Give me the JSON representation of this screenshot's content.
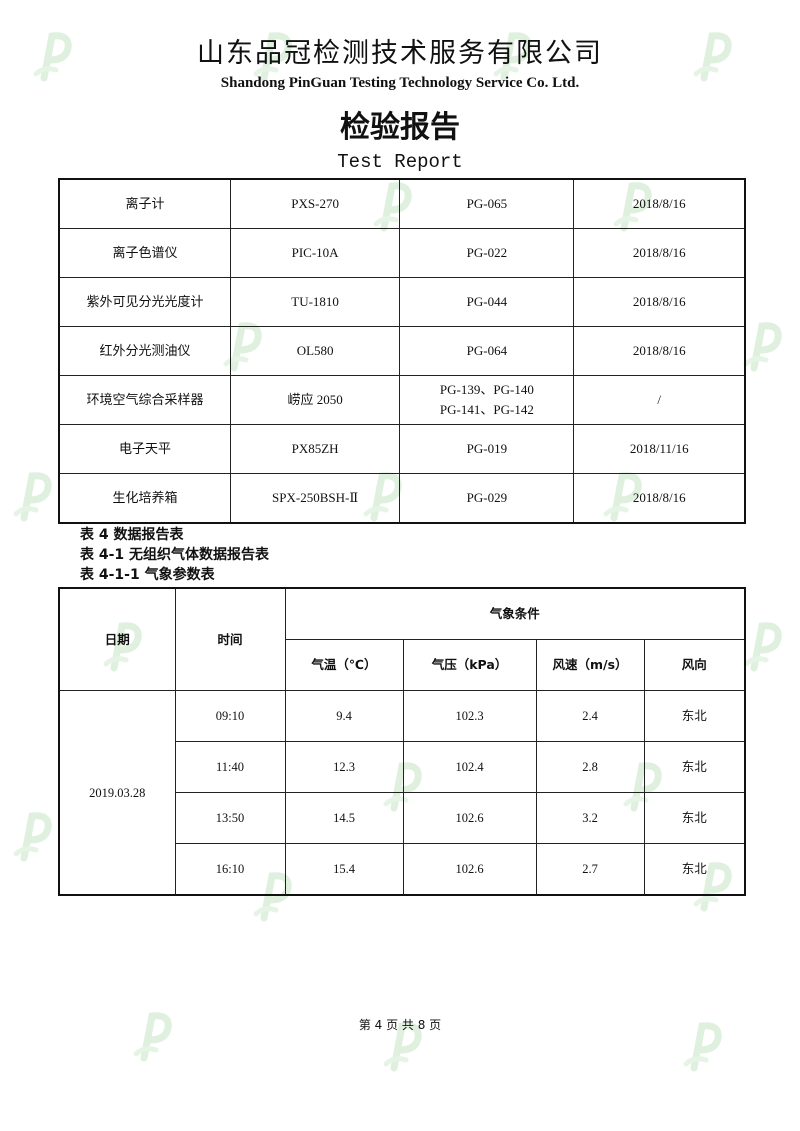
{
  "header": {
    "company_cn": "山东品冠检测技术服务有限公司",
    "company_en": "Shandong PinGuan Testing Technology Service Co. Ltd.",
    "title_cn": "检验报告",
    "title_en": "Test Report"
  },
  "watermark": "P",
  "equipment": [
    [
      "离子计",
      "PXS-270",
      "PG-065",
      "2018/8/16"
    ],
    [
      "离子色谱仪",
      "PIC-10A",
      "PG-022",
      "2018/8/16"
    ],
    [
      "紫外可见分光光度计",
      "TU-1810",
      "PG-044",
      "2018/8/16"
    ],
    [
      "红外分光测油仪",
      "OL580",
      "PG-064",
      "2018/8/16"
    ],
    [
      "环境空气综合采样器",
      "崂应 2050",
      "PG-139、PG-140",
      "/"
    ],
    [
      "电子天平",
      "PX85ZH",
      "PG-019",
      "2018/11/16"
    ],
    [
      "生化培养箱",
      "SPX-250BSH-Ⅱ",
      "PG-029",
      "2018/8/16"
    ]
  ],
  "equipment_extra": "PG-141、PG-142",
  "captions": [
    "表 4 数据报告表",
    "表 4-1 无组织气体数据报告表",
    "表 4-1-1 气象参数表"
  ],
  "weather": {
    "headers": {
      "date": "日期",
      "time": "时间",
      "group": "气象条件",
      "temp": "气温（℃）",
      "pressure": "气压（kPa）",
      "wind_speed": "风速（m/s）",
      "wind_dir": "风向"
    },
    "date": "2019.03.28",
    "rows": [
      [
        "09:10",
        "9.4",
        "102.3",
        "2.4",
        "东北"
      ],
      [
        "11:40",
        "12.3",
        "102.4",
        "2.8",
        "东北"
      ],
      [
        "13:50",
        "14.5",
        "102.6",
        "3.2",
        "东北"
      ],
      [
        "16:10",
        "15.4",
        "102.6",
        "2.7",
        "东北"
      ]
    ]
  },
  "footer": "第 4 页 共 8 页"
}
